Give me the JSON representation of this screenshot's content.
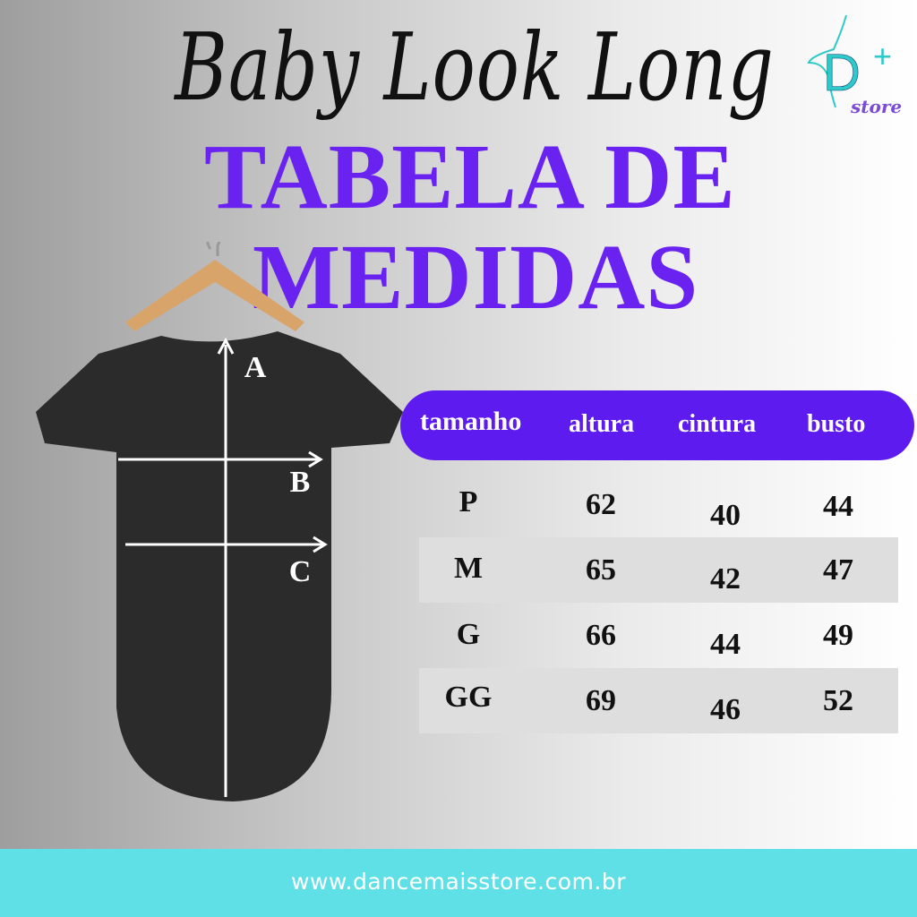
{
  "title_script": "Baby Look Long",
  "title_line1": "TABELA DE",
  "title_line2": "MEDIDAS",
  "logo": {
    "text": "D+",
    "subtext": "store"
  },
  "diagram_labels": [
    "A",
    "B",
    "C"
  ],
  "table": {
    "headers": [
      "tamanho",
      "altura",
      "cintura",
      "busto"
    ],
    "rows": [
      [
        "P",
        "62",
        "40",
        "44"
      ],
      [
        "M",
        "65",
        "42",
        "47"
      ],
      [
        "G",
        "66",
        "44",
        "49"
      ],
      [
        "GG",
        "69",
        "46",
        "52"
      ]
    ]
  },
  "footer_url": "www.dancemaisstore.com.br",
  "colors": {
    "accent": "#5d1bef",
    "footer": "#5ee0e6",
    "logo_teal": "#2ec9c9",
    "logo_purple": "#7a4ad8"
  }
}
